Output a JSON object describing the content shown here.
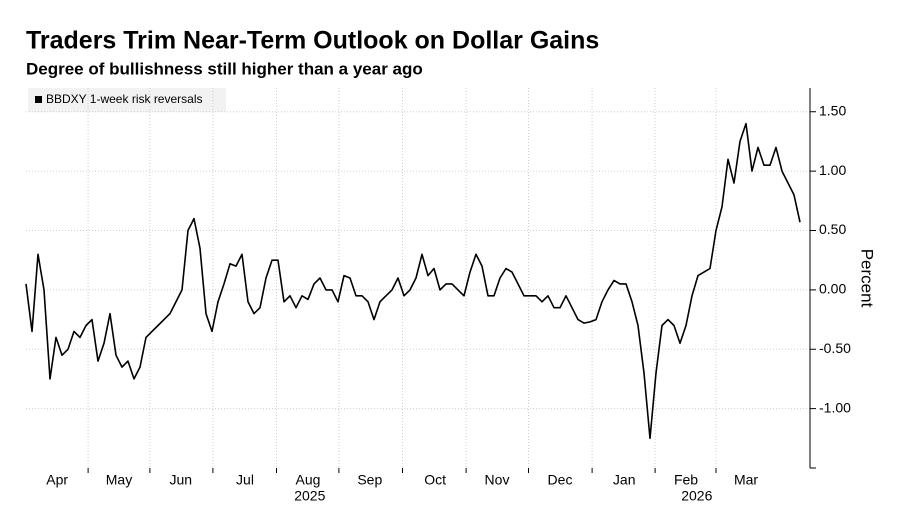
{
  "chart_data": {
    "type": "line",
    "title": "Traders Trim Near-Term Outlook on Dollar Gains",
    "subtitle": "Degree of bullishness still higher than a year ago",
    "y_label": "Percent",
    "grid": true,
    "legend": "top-left",
    "ylim": [
      -1.5,
      1.7
    ],
    "yticks": [
      {
        "value": -1.0,
        "label": "-1.00"
      },
      {
        "value": -0.5,
        "label": "-0.50"
      },
      {
        "value": 0,
        "label": "0.00"
      },
      {
        "value": 0.5,
        "label": "0.50"
      },
      {
        "value": 1.0,
        "label": "1.00"
      },
      {
        "value": 1.5,
        "label": "1.50"
      }
    ],
    "xticks": [
      {
        "value": 5.2,
        "label": "Apr"
      },
      {
        "value": 15.5,
        "label": "May"
      },
      {
        "value": 25.8,
        "label": "Jun"
      },
      {
        "value": 36.5,
        "label": "Jul"
      },
      {
        "value": 47,
        "label": "Aug"
      },
      {
        "value": 57.3,
        "label": "Sep"
      },
      {
        "value": 68.2,
        "label": "Oct"
      },
      {
        "value": 78.5,
        "label": "Nov"
      },
      {
        "value": 89,
        "label": "Dec"
      },
      {
        "value": 99.7,
        "label": "Jan"
      },
      {
        "value": 110,
        "label": "Feb"
      },
      {
        "value": 120,
        "label": "Mar"
      }
    ],
    "year_labels": [
      {
        "value": 47.3,
        "label": "2025"
      },
      {
        "value": 111.8,
        "label": "2026"
      }
    ],
    "series": [
      {
        "name": "BBDXY 1-week risk reversals",
        "color": "#000000",
        "values": [
          0.05,
          -0.35,
          0.3,
          0.0,
          -0.75,
          -0.4,
          -0.55,
          -0.5,
          -0.35,
          -0.4,
          -0.3,
          -0.25,
          -0.6,
          -0.45,
          -0.2,
          -0.55,
          -0.65,
          -0.6,
          -0.75,
          -0.65,
          -0.4,
          -0.35,
          -0.3,
          -0.25,
          -0.2,
          -0.1,
          0.0,
          0.5,
          0.6,
          0.35,
          -0.2,
          -0.35,
          -0.1,
          0.05,
          0.22,
          0.2,
          0.3,
          -0.1,
          -0.2,
          -0.15,
          0.1,
          0.25,
          0.25,
          -0.1,
          -0.05,
          -0.15,
          -0.05,
          -0.08,
          0.05,
          0.1,
          0.0,
          0.0,
          -0.1,
          0.12,
          0.1,
          -0.05,
          -0.05,
          -0.1,
          -0.25,
          -0.1,
          -0.05,
          0.0,
          0.1,
          -0.05,
          0.0,
          0.1,
          0.3,
          0.12,
          0.18,
          0.0,
          0.05,
          0.05,
          0.0,
          -0.05,
          0.15,
          0.3,
          0.2,
          -0.05,
          -0.05,
          0.1,
          0.18,
          0.15,
          0.05,
          -0.05,
          -0.05,
          -0.05,
          -0.1,
          -0.05,
          -0.15,
          -0.15,
          -0.05,
          -0.15,
          -0.25,
          -0.28,
          -0.27,
          -0.25,
          -0.1,
          0.0,
          0.08,
          0.05,
          0.05,
          -0.1,
          -0.3,
          -0.7,
          -1.25,
          -0.7,
          -0.3,
          -0.25,
          -0.3,
          -0.45,
          -0.3,
          -0.05,
          0.12,
          0.15,
          0.18,
          0.5,
          0.7,
          1.1,
          0.9,
          1.25,
          1.4,
          1.0,
          1.2,
          1.05,
          1.05,
          1.2,
          1.0,
          0.9,
          0.8,
          0.57
        ]
      }
    ]
  }
}
